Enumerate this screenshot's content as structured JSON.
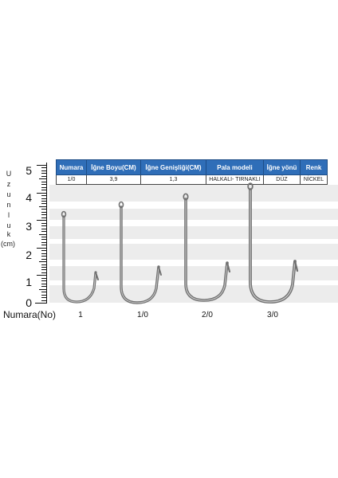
{
  "y_axis": {
    "title_letters": [
      "U",
      "z",
      "u",
      "n",
      "l",
      "u",
      "k"
    ],
    "unit": "(cm)",
    "tick_labels": [
      "5",
      "4",
      "3",
      "2",
      "1",
      "0"
    ]
  },
  "table": {
    "headers": [
      "Numara",
      "İğne Boyu(CM)",
      "İğne Genişliği(CM)",
      "Pala modeli",
      "İğne yönü",
      "Renk"
    ],
    "row": [
      "1/0",
      "3,9",
      "1,3",
      "HALKALI- TIRNAKLI",
      "DÜZ",
      "NİCKEL"
    ]
  },
  "x_axis": {
    "title": "Numara(No)",
    "labels": [
      "1",
      "1/0",
      "2/0",
      "3/0"
    ]
  },
  "colors": {
    "header_bg": "#2f6eb8",
    "band": "#ececec",
    "hook_steel": "#8a8a8a"
  }
}
